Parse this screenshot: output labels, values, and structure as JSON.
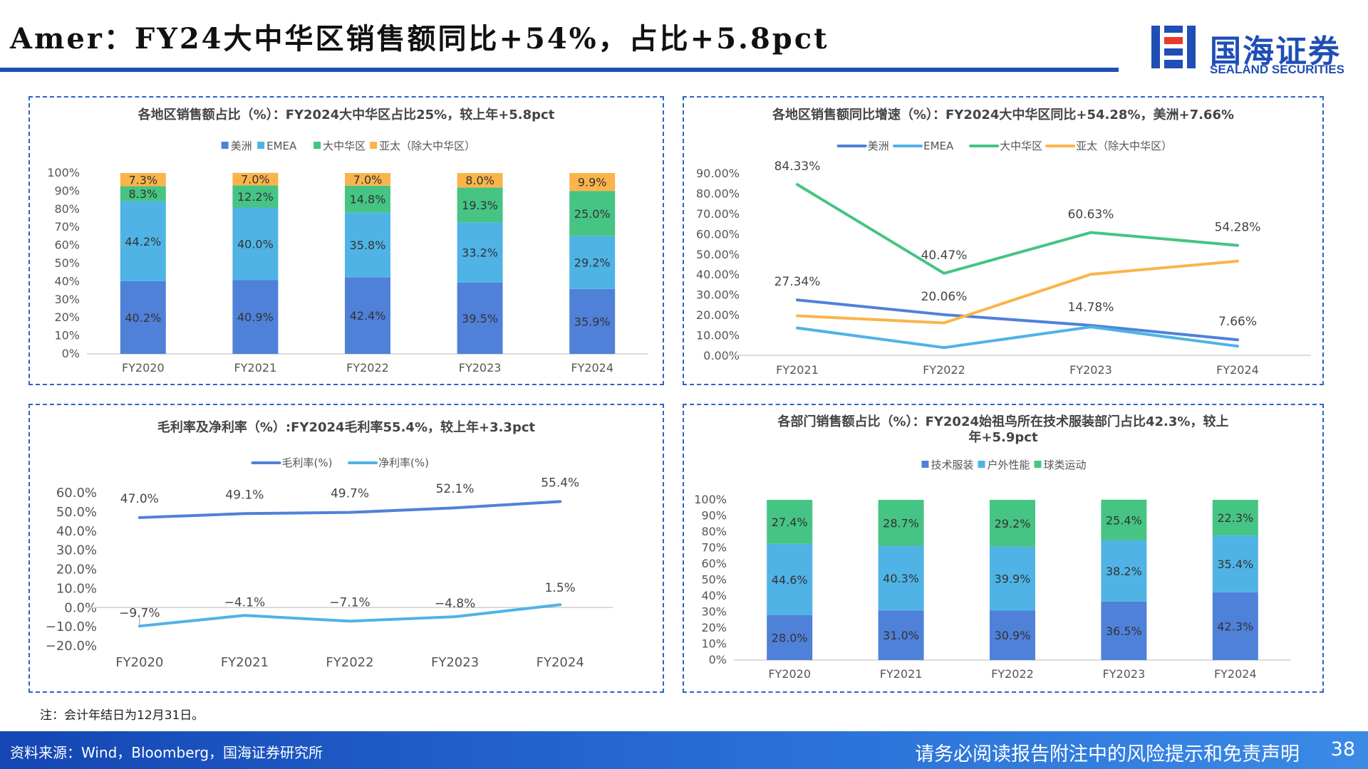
{
  "page": {
    "title": "Amer：FY24大中华区销售额同比+54%，占比+5.8pct",
    "logo": {
      "main": "国海证券",
      "sub": "SEALAND SECURITIES"
    },
    "note": "注：会计年结日为12月31日。",
    "source": "资料来源：Wind，Bloomberg，国海证券研究所",
    "disclaimer": "请务必阅读报告附注中的风险提示和免责声明",
    "page_number": "38",
    "colors": {
      "brand": "#1f4fb5",
      "blue": "#4f81d9",
      "lightblue": "#4fb3e6",
      "green": "#46c483",
      "orange": "#fbb44a"
    }
  },
  "chart_data": [
    {
      "id": "region-share",
      "type": "bar",
      "stacked": true,
      "title": "各地区销售额占比（%）：FY2024大中华区占比25%，较上年+5.8pct",
      "categories": [
        "FY2020",
        "FY2021",
        "FY2022",
        "FY2023",
        "FY2024"
      ],
      "series": [
        {
          "name": "美洲",
          "color": "#4f81d9",
          "values": [
            40.2,
            40.9,
            42.4,
            39.5,
            35.9
          ],
          "labels": [
            "40.2%",
            "40.9%",
            "42.4%",
            "39.5%",
            "35.9%"
          ]
        },
        {
          "name": "EMEA",
          "color": "#4fb3e6",
          "values": [
            44.2,
            40.0,
            35.8,
            33.2,
            29.2
          ],
          "labels": [
            "44.2%",
            "40.0%",
            "35.8%",
            "33.2%",
            "29.2%"
          ]
        },
        {
          "name": "大中华区",
          "color": "#46c483",
          "values": [
            8.3,
            12.2,
            14.8,
            19.3,
            25.0
          ],
          "labels": [
            "8.3%",
            "12.2%",
            "14.8%",
            "19.3%",
            "25.0%"
          ]
        },
        {
          "name": "亚太（除大中华区）",
          "color": "#fbb44a",
          "values": [
            7.3,
            7.0,
            7.0,
            8.0,
            9.9
          ],
          "labels": [
            "7.3%",
            "7.0%",
            "7.0%",
            "8.0%",
            "9.9%"
          ]
        }
      ],
      "ylim": [
        0,
        100
      ],
      "yticks": [
        "0%",
        "10%",
        "20%",
        "30%",
        "40%",
        "50%",
        "60%",
        "70%",
        "80%",
        "90%",
        "100%"
      ],
      "legend": "top"
    },
    {
      "id": "region-growth",
      "type": "line",
      "title": "各地区销售额同比增速（%）：FY2024大中华区同比+54.28%，美洲+7.66%",
      "categories": [
        "FY2021",
        "FY2022",
        "FY2023",
        "FY2024"
      ],
      "series": [
        {
          "name": "美洲",
          "color": "#4f81d9",
          "values": [
            27.34,
            20.06,
            14.78,
            7.66
          ],
          "labels": [
            "27.34%",
            "20.06%",
            "14.78%",
            "7.66%"
          ]
        },
        {
          "name": "EMEA",
          "color": "#4fb3e6",
          "values": [
            13.5,
            3.8,
            14.0,
            4.5
          ],
          "labels": []
        },
        {
          "name": "大中华区",
          "color": "#46c483",
          "values": [
            84.33,
            40.47,
            60.63,
            54.28
          ],
          "labels": [
            "84.33%",
            "40.47%",
            "60.63%",
            "54.28%"
          ]
        },
        {
          "name": "亚太（除大中华区）",
          "color": "#fbb44a",
          "values": [
            19.5,
            16.0,
            40.0,
            46.5
          ],
          "labels": []
        }
      ],
      "ylim": [
        0,
        90
      ],
      "yticks": [
        "0.00%",
        "10.00%",
        "20.00%",
        "30.00%",
        "40.00%",
        "50.00%",
        "60.00%",
        "70.00%",
        "80.00%",
        "90.00%"
      ],
      "legend": "top"
    },
    {
      "id": "margins",
      "type": "line",
      "title": "毛利率及净利率（%）:FY2024毛利率55.4%，较上年+3.3pct",
      "categories": [
        "FY2020",
        "FY2021",
        "FY2022",
        "FY2023",
        "FY2024"
      ],
      "series": [
        {
          "name": "毛利率(%)",
          "color": "#4f81d9",
          "values": [
            47.0,
            49.1,
            49.7,
            52.1,
            55.4
          ],
          "labels": [
            "47.0%",
            "49.1%",
            "49.7%",
            "52.1%",
            "55.4%"
          ]
        },
        {
          "name": "净利率(%)",
          "color": "#4fb3e6",
          "values": [
            -9.7,
            -4.1,
            -7.1,
            -4.8,
            1.5
          ],
          "labels": [
            "−9.7%",
            "−4.1%",
            "−7.1%",
            "−4.8%",
            "1.5%"
          ]
        }
      ],
      "ylim": [
        -20,
        60
      ],
      "yticks": [
        "−20.0%",
        "−10.0%",
        "0.0%",
        "10.0%",
        "20.0%",
        "30.0%",
        "40.0%",
        "50.0%",
        "60.0%"
      ],
      "legend": "top"
    },
    {
      "id": "segment-share",
      "type": "bar",
      "stacked": true,
      "title": [
        "各部门销售额占比（%）：FY2024始祖鸟所在技术服装部门占比42.3%，较上",
        "年+5.9pct"
      ],
      "categories": [
        "FY2020",
        "FY2021",
        "FY2022",
        "FY2023",
        "FY2024"
      ],
      "series": [
        {
          "name": "技术服装",
          "color": "#4f81d9",
          "values": [
            28.0,
            31.0,
            30.9,
            36.5,
            42.3
          ],
          "labels": [
            "28.0%",
            "31.0%",
            "30.9%",
            "36.5%",
            "42.3%"
          ]
        },
        {
          "name": "户外性能",
          "color": "#4fb3e6",
          "values": [
            44.6,
            40.3,
            39.9,
            38.2,
            35.4
          ],
          "labels": [
            "44.6%",
            "40.3%",
            "39.9%",
            "38.2%",
            "35.4%"
          ]
        },
        {
          "name": "球类运动",
          "color": "#46c483",
          "values": [
            27.4,
            28.7,
            29.2,
            25.4,
            22.3
          ],
          "labels": [
            "27.4%",
            "28.7%",
            "29.2%",
            "25.4%",
            "22.3%"
          ]
        }
      ],
      "ylim": [
        0,
        100
      ],
      "yticks": [
        "0%",
        "10%",
        "20%",
        "30%",
        "40%",
        "50%",
        "60%",
        "70%",
        "80%",
        "90%",
        "100%"
      ],
      "legend": "top"
    }
  ]
}
